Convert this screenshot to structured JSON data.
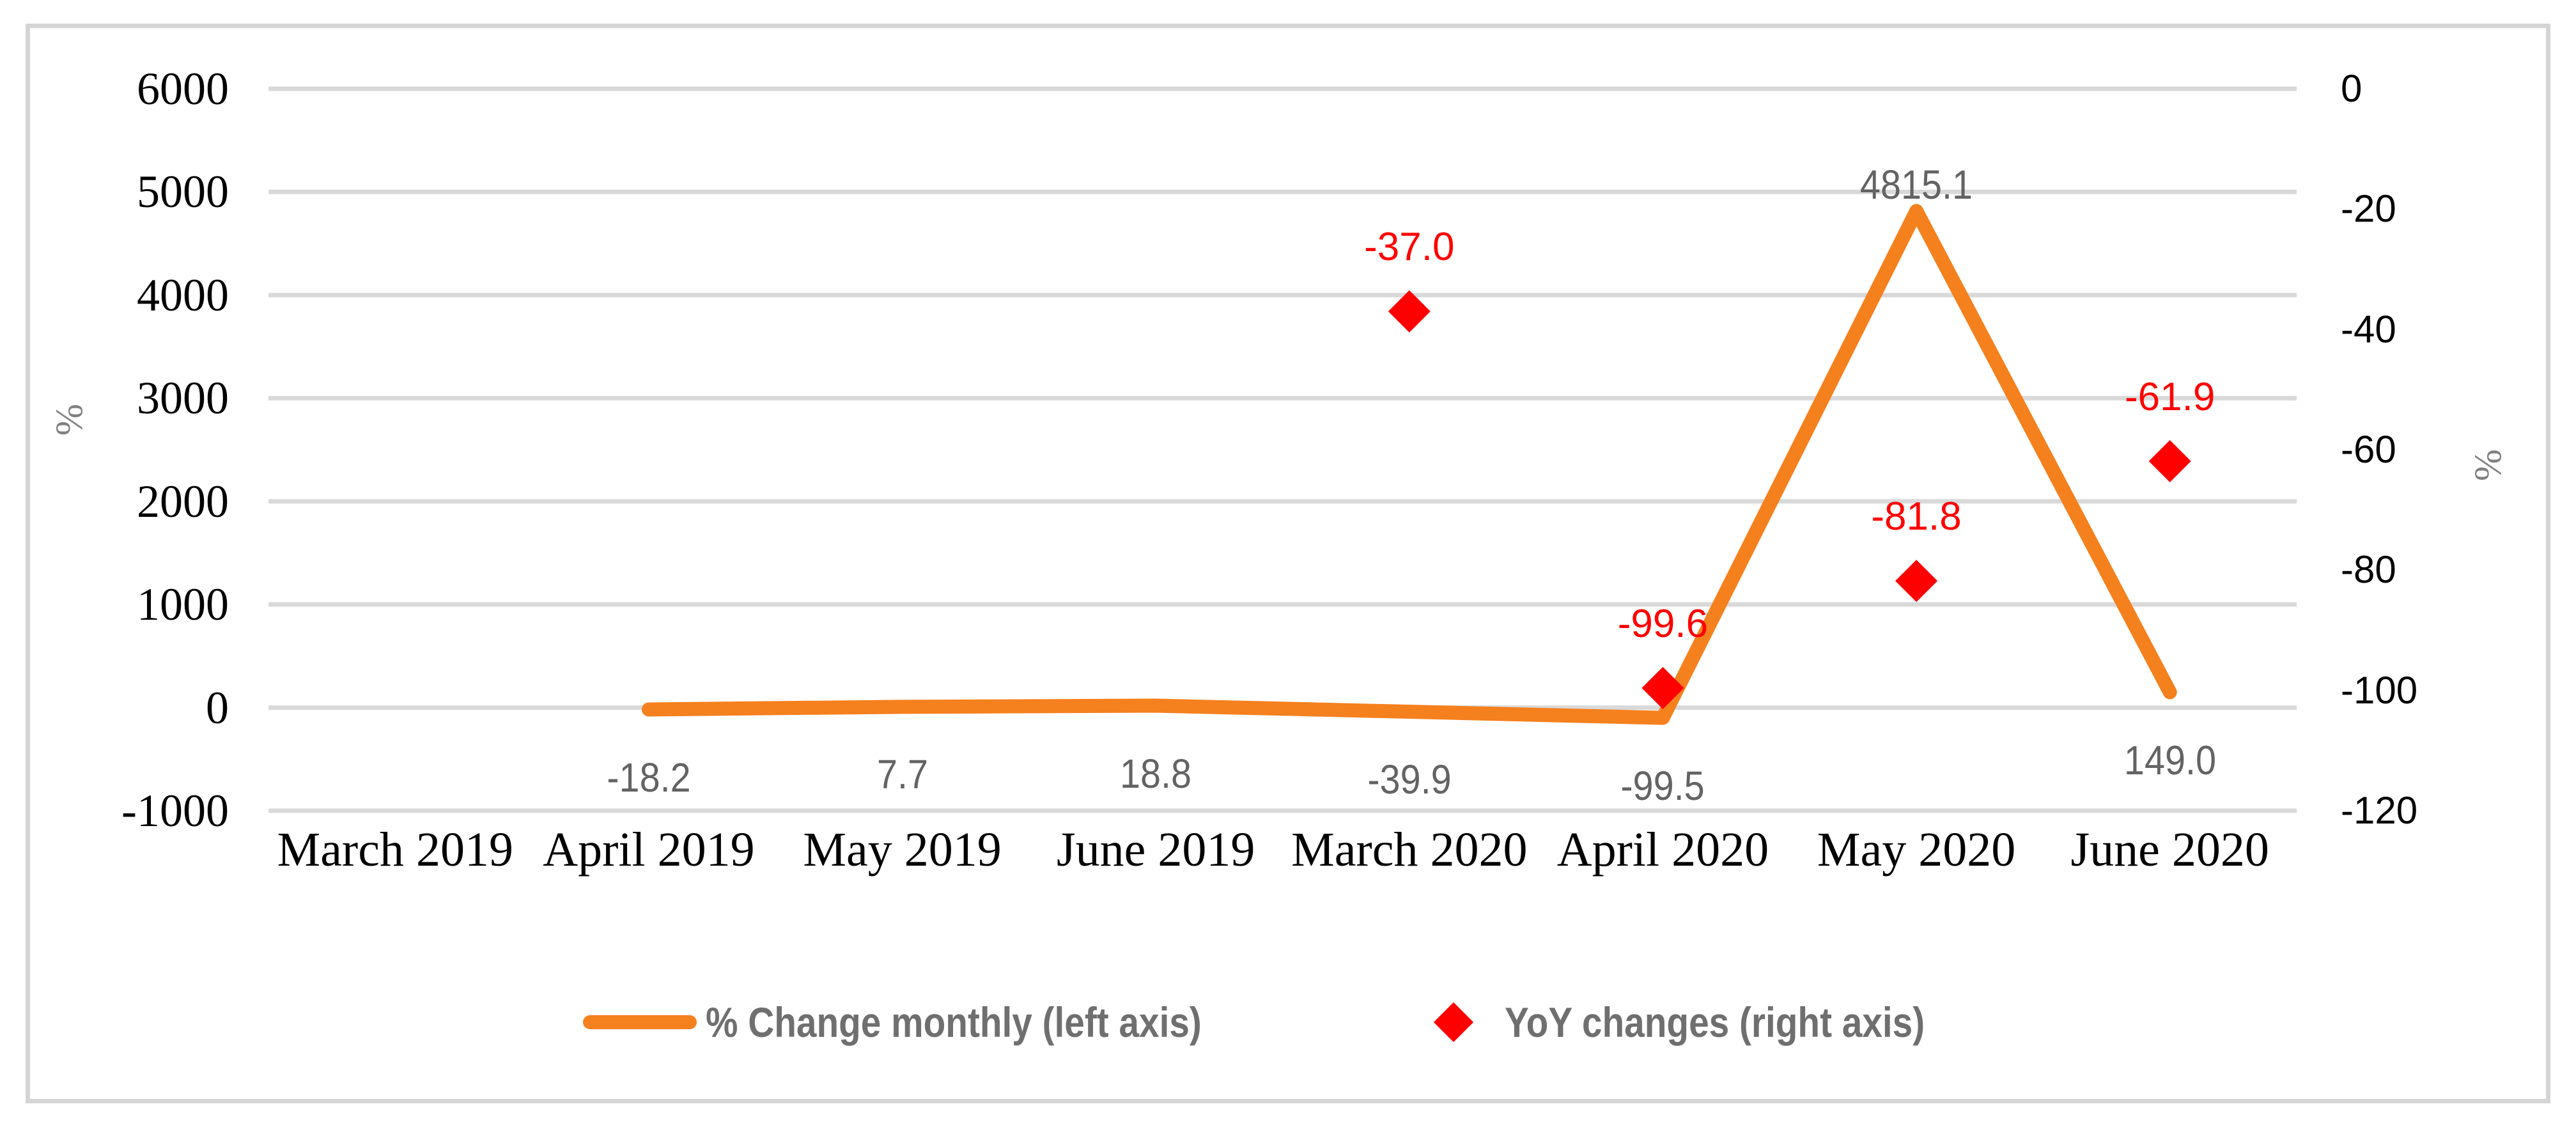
{
  "chart_data": {
    "type": "line+scatter dual-axis",
    "categories": [
      "March 2019",
      "April 2019",
      "May 2019",
      "June 2019",
      "March 2020",
      "April 2020",
      "May 2020",
      "June 2020"
    ],
    "series": [
      {
        "name": "% Change monthly (left axis)",
        "type": "line",
        "axis": "left",
        "color": "#F5801E",
        "values": [
          null,
          -18.2,
          7.7,
          18.8,
          -39.9,
          -99.5,
          4815.1,
          149.0
        ],
        "data_labels": [
          "",
          "-18.2",
          "7.7",
          "18.8",
          "-39.9",
          "-99.5",
          "4815.1",
          "149.0"
        ],
        "label_positions": [
          "",
          "below",
          "below",
          "below",
          "below",
          "below",
          "above",
          "below"
        ],
        "label_color": "#636363"
      },
      {
        "name": "YoY changes (right axis)",
        "type": "scatter",
        "marker": "diamond",
        "axis": "right",
        "color": "#FE0000",
        "values": [
          null,
          null,
          null,
          null,
          -37.0,
          -99.6,
          -81.8,
          -61.9
        ],
        "data_labels": [
          "",
          "",
          "",
          "",
          "-37.0",
          "-99.6",
          "-81.8",
          "-61.9"
        ],
        "label_positions": [
          "",
          "",
          "",
          "",
          "above",
          "above",
          "above",
          "above"
        ],
        "label_color": "#FE0000"
      }
    ],
    "left_axis": {
      "title": "%",
      "min": -1000,
      "max": 6000,
      "step": 1000,
      "tick_labels": [
        "6000",
        "5000",
        "4000",
        "3000",
        "2000",
        "1000",
        "0",
        "-1000"
      ]
    },
    "right_axis": {
      "title": "%",
      "min": -120,
      "max": 0,
      "step": 20,
      "tick_labels": [
        "0",
        "-20",
        "-40",
        "-60",
        "-80",
        "-100",
        "-120"
      ]
    },
    "grid": true,
    "legend_position": "bottom"
  },
  "colors": {
    "background": "#FFFFFF",
    "frame_border": "#D5D5D5",
    "gridline": "#D9D9D9",
    "axis_text": "#000000",
    "axis_title": "#808080",
    "legend_text": "#6F6F6F",
    "line_series": "#F5801E",
    "scatter_series": "#FE0000",
    "line_label": "#636363"
  }
}
